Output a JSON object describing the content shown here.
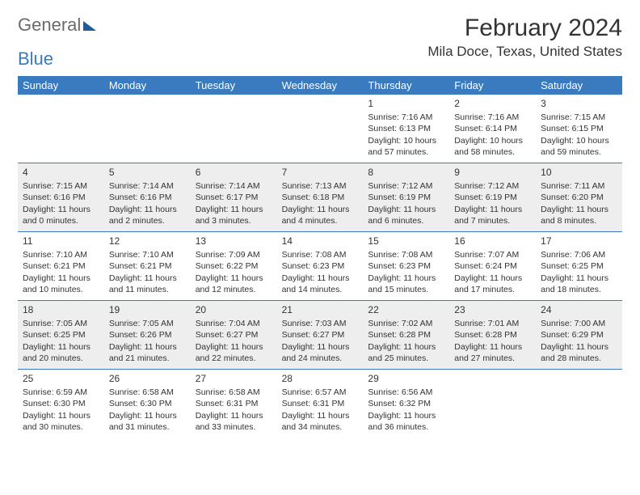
{
  "logo": {
    "word1": "General",
    "word2": "Blue"
  },
  "title": "February 2024",
  "location": "Mila Doce, Texas, United States",
  "colors": {
    "header_bg": "#3a7abf",
    "header_text": "#ffffff",
    "rule": "#3a7abf",
    "shaded": "#eeeeee",
    "text": "#333333",
    "logo_gray": "#6b6b6b",
    "logo_blue": "#3a7abf"
  },
  "day_names": [
    "Sunday",
    "Monday",
    "Tuesday",
    "Wednesday",
    "Thursday",
    "Friday",
    "Saturday"
  ],
  "weeks": [
    {
      "shaded": false,
      "cells": [
        {
          "n": "",
          "sr": "",
          "ss": "",
          "dl": ""
        },
        {
          "n": "",
          "sr": "",
          "ss": "",
          "dl": ""
        },
        {
          "n": "",
          "sr": "",
          "ss": "",
          "dl": ""
        },
        {
          "n": "",
          "sr": "",
          "ss": "",
          "dl": ""
        },
        {
          "n": "1",
          "sr": "Sunrise: 7:16 AM",
          "ss": "Sunset: 6:13 PM",
          "dl": "Daylight: 10 hours and 57 minutes."
        },
        {
          "n": "2",
          "sr": "Sunrise: 7:16 AM",
          "ss": "Sunset: 6:14 PM",
          "dl": "Daylight: 10 hours and 58 minutes."
        },
        {
          "n": "3",
          "sr": "Sunrise: 7:15 AM",
          "ss": "Sunset: 6:15 PM",
          "dl": "Daylight: 10 hours and 59 minutes."
        }
      ]
    },
    {
      "shaded": true,
      "cells": [
        {
          "n": "4",
          "sr": "Sunrise: 7:15 AM",
          "ss": "Sunset: 6:16 PM",
          "dl": "Daylight: 11 hours and 0 minutes."
        },
        {
          "n": "5",
          "sr": "Sunrise: 7:14 AM",
          "ss": "Sunset: 6:16 PM",
          "dl": "Daylight: 11 hours and 2 minutes."
        },
        {
          "n": "6",
          "sr": "Sunrise: 7:14 AM",
          "ss": "Sunset: 6:17 PM",
          "dl": "Daylight: 11 hours and 3 minutes."
        },
        {
          "n": "7",
          "sr": "Sunrise: 7:13 AM",
          "ss": "Sunset: 6:18 PM",
          "dl": "Daylight: 11 hours and 4 minutes."
        },
        {
          "n": "8",
          "sr": "Sunrise: 7:12 AM",
          "ss": "Sunset: 6:19 PM",
          "dl": "Daylight: 11 hours and 6 minutes."
        },
        {
          "n": "9",
          "sr": "Sunrise: 7:12 AM",
          "ss": "Sunset: 6:19 PM",
          "dl": "Daylight: 11 hours and 7 minutes."
        },
        {
          "n": "10",
          "sr": "Sunrise: 7:11 AM",
          "ss": "Sunset: 6:20 PM",
          "dl": "Daylight: 11 hours and 8 minutes."
        }
      ]
    },
    {
      "shaded": false,
      "cells": [
        {
          "n": "11",
          "sr": "Sunrise: 7:10 AM",
          "ss": "Sunset: 6:21 PM",
          "dl": "Daylight: 11 hours and 10 minutes."
        },
        {
          "n": "12",
          "sr": "Sunrise: 7:10 AM",
          "ss": "Sunset: 6:21 PM",
          "dl": "Daylight: 11 hours and 11 minutes."
        },
        {
          "n": "13",
          "sr": "Sunrise: 7:09 AM",
          "ss": "Sunset: 6:22 PM",
          "dl": "Daylight: 11 hours and 12 minutes."
        },
        {
          "n": "14",
          "sr": "Sunrise: 7:08 AM",
          "ss": "Sunset: 6:23 PM",
          "dl": "Daylight: 11 hours and 14 minutes."
        },
        {
          "n": "15",
          "sr": "Sunrise: 7:08 AM",
          "ss": "Sunset: 6:23 PM",
          "dl": "Daylight: 11 hours and 15 minutes."
        },
        {
          "n": "16",
          "sr": "Sunrise: 7:07 AM",
          "ss": "Sunset: 6:24 PM",
          "dl": "Daylight: 11 hours and 17 minutes."
        },
        {
          "n": "17",
          "sr": "Sunrise: 7:06 AM",
          "ss": "Sunset: 6:25 PM",
          "dl": "Daylight: 11 hours and 18 minutes."
        }
      ]
    },
    {
      "shaded": true,
      "cells": [
        {
          "n": "18",
          "sr": "Sunrise: 7:05 AM",
          "ss": "Sunset: 6:25 PM",
          "dl": "Daylight: 11 hours and 20 minutes."
        },
        {
          "n": "19",
          "sr": "Sunrise: 7:05 AM",
          "ss": "Sunset: 6:26 PM",
          "dl": "Daylight: 11 hours and 21 minutes."
        },
        {
          "n": "20",
          "sr": "Sunrise: 7:04 AM",
          "ss": "Sunset: 6:27 PM",
          "dl": "Daylight: 11 hours and 22 minutes."
        },
        {
          "n": "21",
          "sr": "Sunrise: 7:03 AM",
          "ss": "Sunset: 6:27 PM",
          "dl": "Daylight: 11 hours and 24 minutes."
        },
        {
          "n": "22",
          "sr": "Sunrise: 7:02 AM",
          "ss": "Sunset: 6:28 PM",
          "dl": "Daylight: 11 hours and 25 minutes."
        },
        {
          "n": "23",
          "sr": "Sunrise: 7:01 AM",
          "ss": "Sunset: 6:28 PM",
          "dl": "Daylight: 11 hours and 27 minutes."
        },
        {
          "n": "24",
          "sr": "Sunrise: 7:00 AM",
          "ss": "Sunset: 6:29 PM",
          "dl": "Daylight: 11 hours and 28 minutes."
        }
      ]
    },
    {
      "shaded": false,
      "cells": [
        {
          "n": "25",
          "sr": "Sunrise: 6:59 AM",
          "ss": "Sunset: 6:30 PM",
          "dl": "Daylight: 11 hours and 30 minutes."
        },
        {
          "n": "26",
          "sr": "Sunrise: 6:58 AM",
          "ss": "Sunset: 6:30 PM",
          "dl": "Daylight: 11 hours and 31 minutes."
        },
        {
          "n": "27",
          "sr": "Sunrise: 6:58 AM",
          "ss": "Sunset: 6:31 PM",
          "dl": "Daylight: 11 hours and 33 minutes."
        },
        {
          "n": "28",
          "sr": "Sunrise: 6:57 AM",
          "ss": "Sunset: 6:31 PM",
          "dl": "Daylight: 11 hours and 34 minutes."
        },
        {
          "n": "29",
          "sr": "Sunrise: 6:56 AM",
          "ss": "Sunset: 6:32 PM",
          "dl": "Daylight: 11 hours and 36 minutes."
        },
        {
          "n": "",
          "sr": "",
          "ss": "",
          "dl": ""
        },
        {
          "n": "",
          "sr": "",
          "ss": "",
          "dl": ""
        }
      ]
    }
  ]
}
